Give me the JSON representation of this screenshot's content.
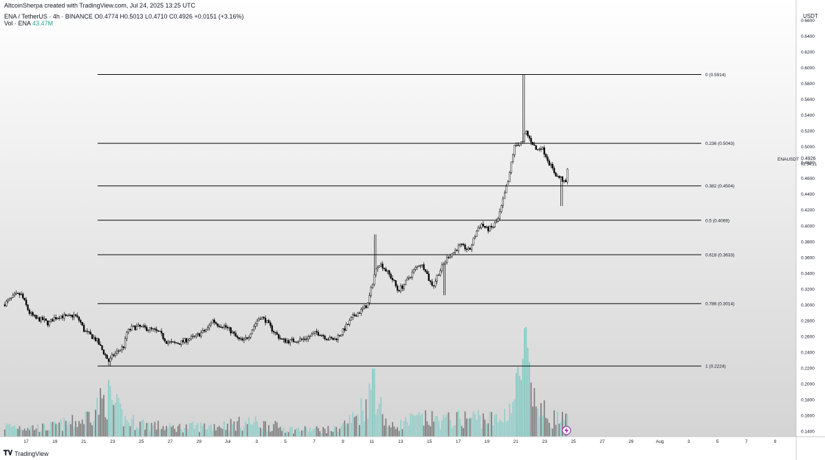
{
  "header": {
    "attribution": "AltcoinSherpa created with TradingView.com, Jul 24, 2025 13:25 UTC",
    "symbol_line": "ENA / TetherUS · 4h · BINANCE  O0.4774  H0.5013  L0.4710  C0.4926  +0.0151 (+3.16%)",
    "volume_label": "Vol · ENA",
    "volume_value": "43.47M"
  },
  "footer": {
    "brand": "TradingView",
    "brand_icon": "tradingview-logo-icon"
  },
  "price_axis": {
    "currency": "USDT",
    "ticks": [
      "0.6600",
      "0.6400",
      "0.6200",
      "0.6000",
      "0.5800",
      "0.5600",
      "0.5400",
      "0.5200",
      "0.5000",
      "0.4800",
      "0.4600",
      "0.4400",
      "0.4200",
      "0.4000",
      "0.3800",
      "0.3600",
      "0.3400",
      "0.3200",
      "0.3000",
      "0.2800",
      "0.2600",
      "0.2400",
      "0.2200",
      "0.2000",
      "0.1800",
      "0.1600",
      "0.1400"
    ],
    "current_symbol": "ENAUSDT",
    "current_price": "0.4926",
    "countdown": "02:34:21"
  },
  "colors": {
    "up": "#ffffff",
    "down": "#000000",
    "fib": "#000000",
    "vol_up": "#8fcfc9",
    "vol_down": "#7a7a7a",
    "vol_spike": "#7ecac3"
  },
  "chart_data": {
    "type": "candlestick",
    "ylim": [
      0.13,
      0.67
    ],
    "x_ticks": [
      "17",
      "19",
      "21",
      "23",
      "25",
      "27",
      "29",
      "Jul",
      "3",
      "5",
      "7",
      "9",
      "11",
      "13",
      "15",
      "17",
      "19",
      "21",
      "23",
      "25",
      "27",
      "29",
      "Aug",
      "3",
      "5",
      "7",
      "9"
    ],
    "fib_levels": [
      {
        "label": "0 (0.5914)",
        "value": 0.5914
      },
      {
        "label": "0.236 (0.5043)",
        "value": 0.5043
      },
      {
        "label": "0.382 (0.4504)",
        "value": 0.4504
      },
      {
        "label": "0.5 (0.4069)",
        "value": 0.4069
      },
      {
        "label": "0.618 (0.3633)",
        "value": 0.3633
      },
      {
        "label": "0.786 (0.3014)",
        "value": 0.3014
      },
      {
        "label": "1 (0.2224)",
        "value": 0.2224
      }
    ],
    "price_path": [
      [
        0,
        0.3
      ],
      [
        8,
        0.305
      ],
      [
        18,
        0.312
      ],
      [
        26,
        0.313
      ],
      [
        30,
        0.306
      ],
      [
        38,
        0.29
      ],
      [
        48,
        0.282
      ],
      [
        58,
        0.281
      ],
      [
        66,
        0.276
      ],
      [
        74,
        0.283
      ],
      [
        84,
        0.286
      ],
      [
        94,
        0.284
      ],
      [
        104,
        0.287
      ],
      [
        112,
        0.279
      ],
      [
        118,
        0.267
      ],
      [
        126,
        0.262
      ],
      [
        136,
        0.255
      ],
      [
        146,
        0.24
      ],
      [
        154,
        0.228
      ],
      [
        160,
        0.236
      ],
      [
        168,
        0.242
      ],
      [
        176,
        0.248
      ],
      [
        180,
        0.265
      ],
      [
        188,
        0.271
      ],
      [
        198,
        0.272
      ],
      [
        208,
        0.27
      ],
      [
        218,
        0.268
      ],
      [
        228,
        0.264
      ],
      [
        238,
        0.253
      ],
      [
        248,
        0.251
      ],
      [
        258,
        0.252
      ],
      [
        268,
        0.256
      ],
      [
        278,
        0.259
      ],
      [
        288,
        0.264
      ],
      [
        298,
        0.27
      ],
      [
        304,
        0.281
      ],
      [
        312,
        0.275
      ],
      [
        322,
        0.273
      ],
      [
        332,
        0.266
      ],
      [
        342,
        0.256
      ],
      [
        350,
        0.254
      ],
      [
        358,
        0.262
      ],
      [
        366,
        0.275
      ],
      [
        374,
        0.285
      ],
      [
        382,
        0.28
      ],
      [
        390,
        0.27
      ],
      [
        398,
        0.262
      ],
      [
        406,
        0.255
      ],
      [
        416,
        0.254
      ],
      [
        426,
        0.255
      ],
      [
        436,
        0.256
      ],
      [
        446,
        0.26
      ],
      [
        456,
        0.265
      ],
      [
        464,
        0.262
      ],
      [
        472,
        0.257
      ],
      [
        482,
        0.256
      ],
      [
        492,
        0.264
      ],
      [
        502,
        0.276
      ],
      [
        510,
        0.286
      ],
      [
        520,
        0.292
      ],
      [
        530,
        0.3
      ],
      [
        536,
        0.322
      ],
      [
        540,
        0.338
      ],
      [
        546,
        0.353
      ],
      [
        552,
        0.349
      ],
      [
        560,
        0.34
      ],
      [
        568,
        0.33
      ],
      [
        574,
        0.318
      ],
      [
        582,
        0.324
      ],
      [
        590,
        0.334
      ],
      [
        598,
        0.344
      ],
      [
        606,
        0.352
      ],
      [
        614,
        0.346
      ],
      [
        620,
        0.33
      ],
      [
        626,
        0.324
      ],
      [
        632,
        0.338
      ],
      [
        640,
        0.35
      ],
      [
        648,
        0.362
      ],
      [
        656,
        0.367
      ],
      [
        664,
        0.375
      ],
      [
        672,
        0.372
      ],
      [
        678,
        0.368
      ],
      [
        684,
        0.382
      ],
      [
        690,
        0.396
      ],
      [
        696,
        0.402
      ],
      [
        704,
        0.395
      ],
      [
        712,
        0.398
      ],
      [
        720,
        0.408
      ],
      [
        726,
        0.428
      ],
      [
        732,
        0.448
      ],
      [
        736,
        0.46
      ],
      [
        740,
        0.485
      ],
      [
        744,
        0.5
      ],
      [
        750,
        0.505
      ],
      [
        756,
        0.505
      ],
      [
        760,
        0.52
      ],
      [
        764,
        0.512
      ],
      [
        770,
        0.505
      ],
      [
        776,
        0.495
      ],
      [
        782,
        0.5
      ],
      [
        788,
        0.492
      ],
      [
        794,
        0.48
      ],
      [
        800,
        0.47
      ],
      [
        806,
        0.462
      ],
      [
        812,
        0.46
      ],
      [
        818,
        0.452
      ],
      [
        822,
        0.478
      ],
      [
        826,
        0.4926
      ]
    ],
    "volume_path": [
      [
        0,
        0.12
      ],
      [
        60,
        0.1
      ],
      [
        112,
        0.18
      ],
      [
        150,
        0.45
      ],
      [
        176,
        0.18
      ],
      [
        240,
        0.1
      ],
      [
        300,
        0.12
      ],
      [
        360,
        0.16
      ],
      [
        420,
        0.08
      ],
      [
        480,
        0.08
      ],
      [
        510,
        0.22
      ],
      [
        540,
        0.55
      ],
      [
        548,
        0.3
      ],
      [
        560,
        0.1
      ],
      [
        600,
        0.2
      ],
      [
        640,
        0.18
      ],
      [
        690,
        0.22
      ],
      [
        720,
        0.18
      ],
      [
        740,
        0.4
      ],
      [
        760,
        1.0
      ],
      [
        764,
        0.45
      ],
      [
        790,
        0.22
      ],
      [
        826,
        0.16
      ]
    ],
    "volume_ylim": [
      0,
      0.23
    ]
  }
}
